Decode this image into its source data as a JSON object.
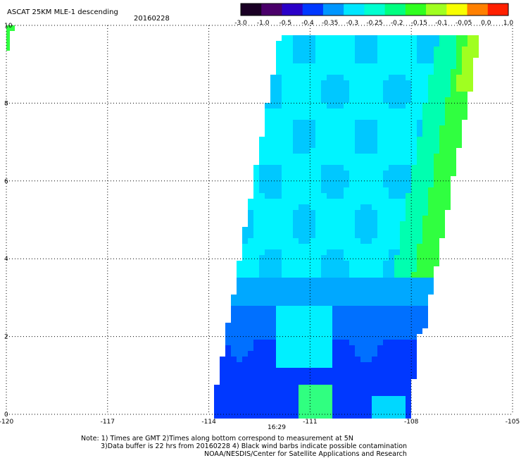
{
  "header": {
    "title": "ASCAT 25KM MLE-1 descending",
    "date": "20160228"
  },
  "colorbar": {
    "labels": [
      "-3.0",
      "-1.0",
      "-0.5",
      "-0.4",
      "-0.35",
      "-0.3",
      "-0.25",
      "-0.2",
      "-0.15",
      "-0.1",
      "-0.05",
      "0.0",
      "1.0"
    ],
    "colors": [
      "#1a0024",
      "#4a006a",
      "#2a00c8",
      "#0038ff",
      "#0096ff",
      "#00e6ff",
      "#00ffd0",
      "#00ff80",
      "#30ff20",
      "#a0ff20",
      "#f8ff00",
      "#ff8000",
      "#ff2000"
    ]
  },
  "axes": {
    "x_ticks": [
      "-120",
      "-117",
      "-114",
      "-111",
      "-108",
      "-105"
    ],
    "y_ticks": [
      "0",
      "2",
      "4",
      "6",
      "8",
      "10"
    ],
    "time_label": "16:29",
    "time_color": "#ff2000"
  },
  "notes": {
    "line1": "Note: 1) Times are GMT 2)Times along bottom correspond to measurement at 5N",
    "line2": "3)Data buffer is 22 hrs from 20160228 4) Black wind barbs indicate possible contamination",
    "line3": "NOAA/NESDIS/Center for Satellite Applications and Research"
  }
}
